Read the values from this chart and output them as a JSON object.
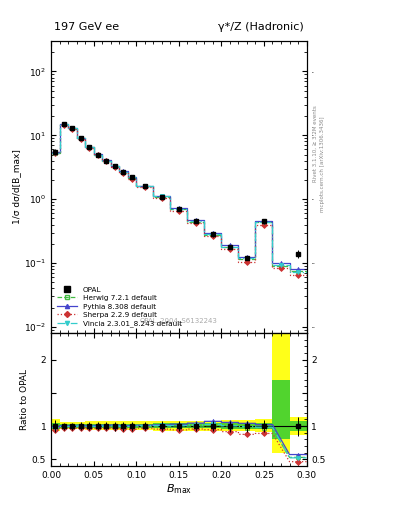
{
  "title_left": "197 GeV ee",
  "title_right": "γ*/Z (Hadronic)",
  "xlabel": "B_{max}",
  "ylabel_main": "1/σ dσ/d[B_max]",
  "ylabel_ratio": "Ratio to OPAL",
  "watermark": "OPAL_2004_S6132243",
  "right_label_top": "Rivet 3.1.10, ≥ 3.2M events",
  "right_label_bot": "mcplots.cern.ch [arXiv:1306.3436]",
  "bmax_edges": [
    0.0,
    0.01,
    0.02,
    0.03,
    0.04,
    0.05,
    0.06,
    0.07,
    0.08,
    0.09,
    0.1,
    0.12,
    0.14,
    0.16,
    0.18,
    0.2,
    0.22,
    0.24,
    0.26,
    0.28,
    0.3
  ],
  "opal_y": [
    5.5,
    15.0,
    13.0,
    9.0,
    6.5,
    5.0,
    4.0,
    3.3,
    2.7,
    2.2,
    1.6,
    1.1,
    0.7,
    0.45,
    0.28,
    0.18,
    0.12,
    0.45,
    null,
    0.14
  ],
  "opal_yerr": [
    0.5,
    0.8,
    0.7,
    0.5,
    0.4,
    0.3,
    0.25,
    0.22,
    0.18,
    0.15,
    0.1,
    0.08,
    0.05,
    0.03,
    0.02,
    0.015,
    0.01,
    0.04,
    null,
    0.02
  ],
  "herwig_y": [
    5.35,
    14.85,
    12.85,
    8.95,
    6.45,
    4.95,
    3.97,
    3.27,
    2.67,
    2.17,
    1.59,
    1.09,
    0.69,
    0.445,
    0.275,
    0.177,
    0.117,
    0.435,
    0.091,
    0.074
  ],
  "pythia_y": [
    5.45,
    15.1,
    13.1,
    9.1,
    6.52,
    5.05,
    4.05,
    3.35,
    2.72,
    2.22,
    1.62,
    1.12,
    0.72,
    0.47,
    0.3,
    0.19,
    0.125,
    0.46,
    0.1,
    0.08
  ],
  "sherpa_y": [
    5.2,
    14.6,
    12.6,
    8.8,
    6.3,
    4.85,
    3.9,
    3.2,
    2.6,
    2.1,
    1.55,
    1.05,
    0.66,
    0.43,
    0.265,
    0.165,
    0.105,
    0.4,
    0.085,
    0.065
  ],
  "vincia_y": [
    5.38,
    14.92,
    12.92,
    9.02,
    6.48,
    4.97,
    4.01,
    3.31,
    2.69,
    2.19,
    1.61,
    1.11,
    0.705,
    0.457,
    0.287,
    0.181,
    0.119,
    0.443,
    0.093,
    0.073
  ],
  "herwig_color": "#44bb44",
  "pythia_color": "#4444cc",
  "sherpa_color": "#cc3333",
  "vincia_color": "#33cccc",
  "yellow_band_lo": [
    0.92,
    0.95,
    0.95,
    0.95,
    0.94,
    0.94,
    0.94,
    0.94,
    0.94,
    0.94,
    0.94,
    0.93,
    0.93,
    0.93,
    0.93,
    0.92,
    0.92,
    0.91,
    0.6,
    0.86
  ],
  "yellow_band_hi": [
    1.1,
    1.06,
    1.06,
    1.06,
    1.07,
    1.07,
    1.07,
    1.07,
    1.07,
    1.07,
    1.07,
    1.08,
    1.08,
    1.08,
    1.08,
    1.09,
    1.09,
    1.1,
    2.5,
    1.14
  ],
  "green_band_lo": [
    0.96,
    0.975,
    0.975,
    0.975,
    0.97,
    0.97,
    0.97,
    0.97,
    0.97,
    0.97,
    0.97,
    0.965,
    0.965,
    0.965,
    0.965,
    0.96,
    0.96,
    0.955,
    0.8,
    0.93
  ],
  "green_band_hi": [
    1.05,
    1.03,
    1.03,
    1.03,
    1.035,
    1.035,
    1.035,
    1.035,
    1.035,
    1.035,
    1.035,
    1.04,
    1.04,
    1.04,
    1.04,
    1.045,
    1.045,
    1.05,
    1.7,
    1.07
  ],
  "ylim_main": [
    0.008,
    300
  ],
  "ylim_ratio": [
    0.4,
    2.4
  ],
  "xlim": [
    0.0,
    0.3
  ]
}
